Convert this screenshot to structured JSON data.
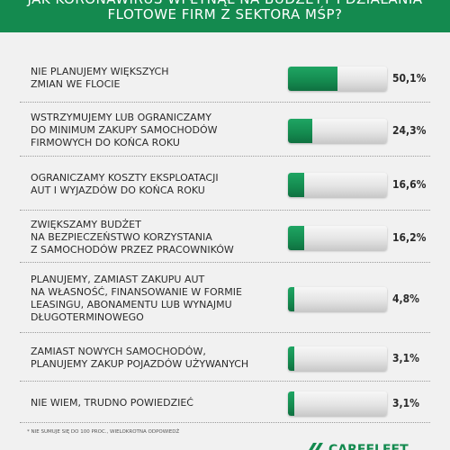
{
  "header": {
    "title_line1": "Jak koronawirus wpłynął na budżety i działania",
    "title_line2": "flotowe firm z sektora MŚP?"
  },
  "chart_data": {
    "type": "bar",
    "orientation": "horizontal",
    "value_unit": "%",
    "xlim": [
      0,
      100
    ],
    "categories": [
      "Nie planujemy większych zmian we flocie",
      "Wstrzymujemy lub ograniczamy do minimum zakupy samochodów firmowych do końca roku",
      "Ograniczamy koszty eksploatacji aut i wyjazdów do końca roku",
      "Zwiększamy budżet na bezpieczeństwo korzystania z samochodów przez pracowników",
      "Planujemy, zamiast zakupu aut na własność, finansowanie w formie leasingu, abonamentu lub wynajmu długoterminowego",
      "Zamiast nowych samochodów, planujemy zakup pojazdów używanych",
      "Nie wiem, trudno powiedzieć"
    ],
    "label_lines": [
      [
        "Nie planujemy większych",
        "zmian we flocie"
      ],
      [
        "Wstrzymujemy lub ograniczamy",
        "do minimum zakupy samochodów",
        "firmowych do końca roku"
      ],
      [
        "Ograniczamy koszty eksploatacji",
        "aut i wyjazdów do końca roku"
      ],
      [
        "Zwiększamy budżet",
        "na bezpieczeństwo korzystania",
        "z samochodów przez pracowników"
      ],
      [
        "Planujemy, zamiast zakupu aut",
        "na własność, finansowanie w formie",
        "leasingu, abonamentu lub wynajmu",
        "długoterminowego"
      ],
      [
        "Zamiast nowych samochodów,",
        "planujemy zakup  pojazdów używanych"
      ],
      [
        "Nie wiem, trudno powiedzieć"
      ]
    ],
    "values": [
      50.1,
      24.3,
      16.6,
      16.2,
      4.8,
      3.1,
      3.1
    ],
    "value_labels": [
      "50,1%",
      "24,3%",
      "16,6%",
      "16,2%",
      "4,8%",
      "3,1%",
      "3,1%"
    ],
    "bar_color": "#148a4f",
    "grid": false
  },
  "footnote": "* Nie sumuje się do 100 proc., wielokrotna odpowiedź",
  "brand": {
    "name": "CAREFLEET",
    "color": "#148a4f"
  }
}
